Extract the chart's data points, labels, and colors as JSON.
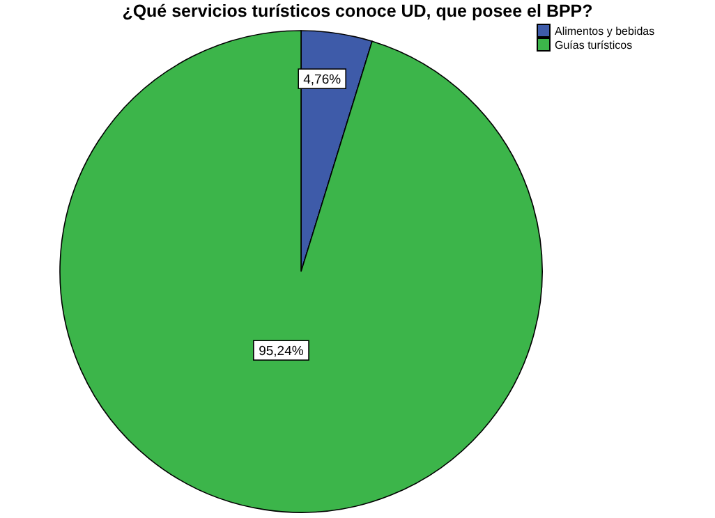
{
  "chart_data": {
    "type": "pie",
    "title": "¿Qué servicios turísticos conoce UD, que posee el BPP?",
    "categories": [
      "Alimentos y bebidas",
      "Guías turísticos"
    ],
    "values": [
      4.76,
      95.24
    ],
    "colors": [
      "#3e5ba9",
      "#3cb54a"
    ],
    "value_labels": [
      "4,76%",
      "95,24%"
    ],
    "legend": "top right"
  }
}
